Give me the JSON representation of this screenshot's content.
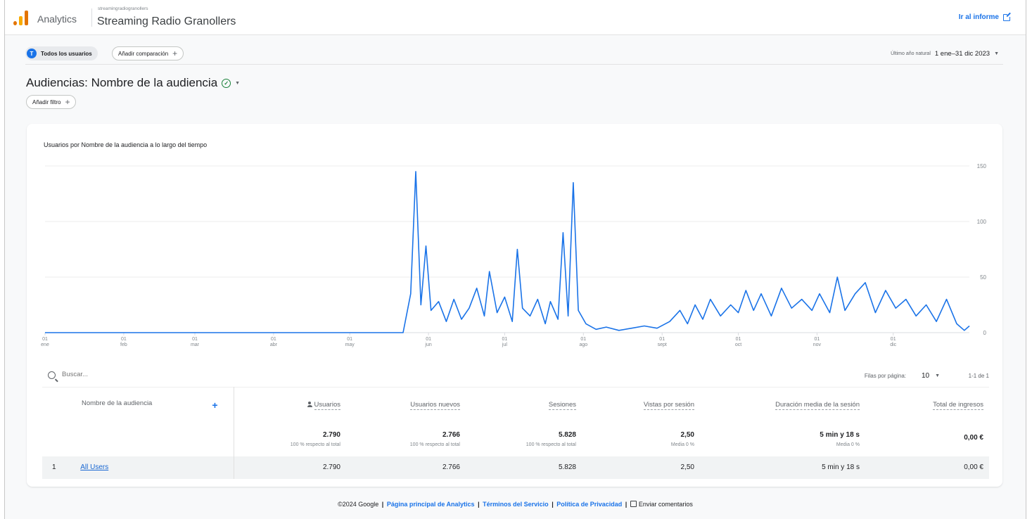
{
  "header": {
    "app_name": "Analytics",
    "account_name": "streamingradiogranollers",
    "property_name": "Streaming Radio Granollers",
    "goto_report_label": "Ir al informe",
    "logo_colors": [
      "#f9ab00",
      "#e37400"
    ]
  },
  "comparison_bar": {
    "segment_label": "Todos los usuarios",
    "segment_badge": "T",
    "add_comparison_label": "Añadir comparación",
    "date_range_label": "Último año natural",
    "date_range_value": "1 ene–31 dic 2023"
  },
  "page": {
    "title": "Audiencias: Nombre de la audiencia",
    "add_filter_label": "Añadir filtro"
  },
  "chart_data": {
    "type": "line",
    "title": "Usuarios por Nombre de la audiencia a lo largo del tiempo",
    "xlabel": "",
    "ylabel": "",
    "ylim": [
      0,
      150
    ],
    "y_ticks": [
      0,
      50,
      100,
      150
    ],
    "x_ticks": [
      {
        "day": "01",
        "month": "ene"
      },
      {
        "day": "01",
        "month": "feb"
      },
      {
        "day": "01",
        "month": "mar"
      },
      {
        "day": "01",
        "month": "abr"
      },
      {
        "day": "01",
        "month": "may"
      },
      {
        "day": "01",
        "month": "jun"
      },
      {
        "day": "01",
        "month": "jul"
      },
      {
        "day": "01",
        "month": "ago"
      },
      {
        "day": "01",
        "month": "sept"
      },
      {
        "day": "01",
        "month": "oct"
      },
      {
        "day": "01",
        "month": "nov"
      },
      {
        "day": "01",
        "month": "dic"
      }
    ],
    "grid": true,
    "series": [
      {
        "color": "#1a73e8",
        "x_start": "2023-01-01",
        "x_end": "2023-12-31",
        "points": [
          [
            "2023-01-01",
            0
          ],
          [
            "2023-05-22",
            0
          ],
          [
            "2023-05-25",
            35
          ],
          [
            "2023-05-27",
            145
          ],
          [
            "2023-05-29",
            25
          ],
          [
            "2023-05-31",
            78
          ],
          [
            "2023-06-02",
            20
          ],
          [
            "2023-06-05",
            28
          ],
          [
            "2023-06-08",
            10
          ],
          [
            "2023-06-11",
            30
          ],
          [
            "2023-06-14",
            12
          ],
          [
            "2023-06-17",
            22
          ],
          [
            "2023-06-20",
            40
          ],
          [
            "2023-06-23",
            15
          ],
          [
            "2023-06-25",
            55
          ],
          [
            "2023-06-28",
            18
          ],
          [
            "2023-07-01",
            32
          ],
          [
            "2023-07-04",
            10
          ],
          [
            "2023-07-06",
            75
          ],
          [
            "2023-07-08",
            22
          ],
          [
            "2023-07-11",
            15
          ],
          [
            "2023-07-14",
            30
          ],
          [
            "2023-07-17",
            8
          ],
          [
            "2023-07-19",
            28
          ],
          [
            "2023-07-22",
            12
          ],
          [
            "2023-07-24",
            90
          ],
          [
            "2023-07-26",
            15
          ],
          [
            "2023-07-28",
            135
          ],
          [
            "2023-07-30",
            20
          ],
          [
            "2023-08-02",
            8
          ],
          [
            "2023-08-06",
            3
          ],
          [
            "2023-08-10",
            5
          ],
          [
            "2023-08-15",
            2
          ],
          [
            "2023-08-20",
            4
          ],
          [
            "2023-08-25",
            6
          ],
          [
            "2023-08-30",
            4
          ],
          [
            "2023-09-04",
            10
          ],
          [
            "2023-09-08",
            20
          ],
          [
            "2023-09-11",
            8
          ],
          [
            "2023-09-14",
            25
          ],
          [
            "2023-09-17",
            12
          ],
          [
            "2023-09-20",
            30
          ],
          [
            "2023-09-24",
            15
          ],
          [
            "2023-09-28",
            25
          ],
          [
            "2023-10-01",
            18
          ],
          [
            "2023-10-04",
            38
          ],
          [
            "2023-10-07",
            20
          ],
          [
            "2023-10-10",
            35
          ],
          [
            "2023-10-14",
            15
          ],
          [
            "2023-10-18",
            40
          ],
          [
            "2023-10-22",
            22
          ],
          [
            "2023-10-26",
            30
          ],
          [
            "2023-10-30",
            20
          ],
          [
            "2023-11-02",
            35
          ],
          [
            "2023-11-06",
            18
          ],
          [
            "2023-11-09",
            50
          ],
          [
            "2023-11-12",
            20
          ],
          [
            "2023-11-16",
            35
          ],
          [
            "2023-11-20",
            45
          ],
          [
            "2023-11-24",
            18
          ],
          [
            "2023-11-28",
            38
          ],
          [
            "2023-12-02",
            22
          ],
          [
            "2023-12-06",
            30
          ],
          [
            "2023-12-10",
            15
          ],
          [
            "2023-12-14",
            25
          ],
          [
            "2023-12-18",
            10
          ],
          [
            "2023-12-22",
            30
          ],
          [
            "2023-12-26",
            8
          ],
          [
            "2023-12-29",
            2
          ],
          [
            "2023-12-31",
            6
          ]
        ]
      }
    ]
  },
  "table": {
    "search_placeholder": "Buscar...",
    "rows_per_page_label": "Filas por página:",
    "rows_per_page_value": "10",
    "page_info": "1-1 de 1",
    "dimension_header": "Nombre de la audiencia",
    "columns": [
      {
        "label": "Usuarios",
        "total": "2.790",
        "total_sub": "100 % respecto al total"
      },
      {
        "label": "Usuarios nuevos",
        "total": "2.766",
        "total_sub": "100 % respecto al total"
      },
      {
        "label": "Sesiones",
        "total": "5.828",
        "total_sub": "100 % respecto al total"
      },
      {
        "label": "Vistas por sesión",
        "total": "2,50",
        "total_sub": "Media 0 %"
      },
      {
        "label": "Duración media de la sesión",
        "total": "5 min y 18 s",
        "total_sub": "Media 0 %"
      },
      {
        "label": "Total de ingresos",
        "total": "0,00 €",
        "total_sub": ""
      }
    ],
    "rows": [
      {
        "index": "1",
        "audience": "All Users",
        "values": [
          "2.790",
          "2.766",
          "5.828",
          "2,50",
          "5 min y 18 s",
          "0,00 €"
        ]
      }
    ]
  },
  "footer": {
    "copyright": "©2024 Google",
    "links": [
      "Página principal de Analytics",
      "Términos del Servicio",
      "Política de Privacidad"
    ],
    "feedback_label": "Enviar comentarios"
  }
}
